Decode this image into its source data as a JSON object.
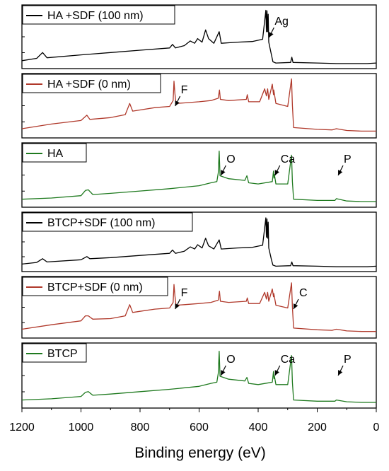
{
  "colors": {
    "black": "#000000",
    "red": "#b0392b",
    "green": "#1f7a1f"
  },
  "chart_data": {
    "type": "line",
    "xlabel": "Binding energy (eV)",
    "xlim": [
      1200,
      0
    ],
    "x_reversed": true,
    "x_ticks": [
      1200,
      1000,
      800,
      600,
      400,
      200,
      0
    ],
    "x_tick_labels": [
      "1200",
      "1000",
      "800",
      "600",
      "400",
      "200",
      "0"
    ],
    "stacked_panels": true,
    "series": [
      {
        "name": "HA +SDF (100 nm)",
        "color": "black",
        "points": [
          [
            1200,
            0.1
          ],
          [
            1150,
            0.14
          ],
          [
            1130,
            0.24
          ],
          [
            1115,
            0.15
          ],
          [
            1000,
            0.2
          ],
          [
            900,
            0.24
          ],
          [
            800,
            0.28
          ],
          [
            700,
            0.32
          ],
          [
            690,
            0.38
          ],
          [
            680,
            0.32
          ],
          [
            650,
            0.36
          ],
          [
            630,
            0.44
          ],
          [
            615,
            0.4
          ],
          [
            605,
            0.48
          ],
          [
            590,
            0.42
          ],
          [
            578,
            0.63
          ],
          [
            568,
            0.48
          ],
          [
            550,
            0.4
          ],
          [
            532,
            0.6
          ],
          [
            525,
            0.4
          ],
          [
            470,
            0.42
          ],
          [
            420,
            0.43
          ],
          [
            385,
            0.47
          ],
          [
            374,
            0.97
          ],
          [
            372,
            0.6
          ],
          [
            370,
            0.96
          ],
          [
            368,
            0.6
          ],
          [
            366,
            0.9
          ],
          [
            364,
            0.42
          ],
          [
            355,
            0.2
          ],
          [
            350,
            0.08
          ],
          [
            340,
            0.06
          ],
          [
            290,
            0.07
          ],
          [
            286,
            0.16
          ],
          [
            282,
            0.07
          ],
          [
            200,
            0.06
          ],
          [
            135,
            0.05
          ],
          [
            100,
            0.05
          ],
          [
            30,
            0.05
          ],
          [
            0,
            0.06
          ]
        ],
        "peak_labels": [
          {
            "text": "Ag",
            "energy": 368
          }
        ]
      },
      {
        "name": "HA +SDF (0 nm)",
        "color": "red",
        "points": [
          [
            1200,
            0.12
          ],
          [
            1100,
            0.2
          ],
          [
            1000,
            0.26
          ],
          [
            980,
            0.35
          ],
          [
            970,
            0.28
          ],
          [
            900,
            0.31
          ],
          [
            850,
            0.36
          ],
          [
            835,
            0.55
          ],
          [
            825,
            0.42
          ],
          [
            800,
            0.44
          ],
          [
            750,
            0.48
          ],
          [
            700,
            0.5
          ],
          [
            688,
            0.6
          ],
          [
            685,
            0.93
          ],
          [
            682,
            0.72
          ],
          [
            678,
            0.55
          ],
          [
            650,
            0.56
          ],
          [
            600,
            0.58
          ],
          [
            560,
            0.6
          ],
          [
            535,
            0.64
          ],
          [
            531,
            0.78
          ],
          [
            528,
            0.62
          ],
          [
            500,
            0.6
          ],
          [
            440,
            0.62
          ],
          [
            437,
            0.7
          ],
          [
            432,
            0.58
          ],
          [
            395,
            0.58
          ],
          [
            378,
            0.8
          ],
          [
            372,
            0.68
          ],
          [
            368,
            0.8
          ],
          [
            364,
            0.62
          ],
          [
            352,
            0.88
          ],
          [
            348,
            0.7
          ],
          [
            347,
            0.78
          ],
          [
            340,
            0.55
          ],
          [
            300,
            0.5
          ],
          [
            287,
            0.97
          ],
          [
            284,
            0.52
          ],
          [
            280,
            0.14
          ],
          [
            200,
            0.11
          ],
          [
            150,
            0.1
          ],
          [
            135,
            0.12
          ],
          [
            100,
            0.09
          ],
          [
            50,
            0.08
          ],
          [
            0,
            0.08
          ]
        ],
        "peak_labels": [
          {
            "text": "F",
            "energy": 686
          }
        ]
      },
      {
        "name": "HA",
        "color": "green",
        "points": [
          [
            1200,
            0.1
          ],
          [
            1100,
            0.12
          ],
          [
            1000,
            0.16
          ],
          [
            985,
            0.25
          ],
          [
            975,
            0.26
          ],
          [
            960,
            0.18
          ],
          [
            900,
            0.2
          ],
          [
            800,
            0.24
          ],
          [
            700,
            0.28
          ],
          [
            600,
            0.33
          ],
          [
            560,
            0.38
          ],
          [
            540,
            0.4
          ],
          [
            535,
            0.55
          ],
          [
            532,
            0.92
          ],
          [
            529,
            0.5
          ],
          [
            500,
            0.45
          ],
          [
            445,
            0.42
          ],
          [
            438,
            0.5
          ],
          [
            432,
            0.38
          ],
          [
            400,
            0.36
          ],
          [
            352,
            0.4
          ],
          [
            348,
            0.58
          ],
          [
            346,
            0.46
          ],
          [
            345,
            0.52
          ],
          [
            340,
            0.36
          ],
          [
            300,
            0.36
          ],
          [
            287,
            0.85
          ],
          [
            284,
            0.4
          ],
          [
            280,
            0.1
          ],
          [
            200,
            0.08
          ],
          [
            140,
            0.08
          ],
          [
            135,
            0.11
          ],
          [
            100,
            0.07
          ],
          [
            50,
            0.06
          ],
          [
            0,
            0.06
          ]
        ],
        "peak_labels": [
          {
            "text": "O",
            "energy": 531
          },
          {
            "text": "Ca",
            "energy": 348
          },
          {
            "text": "P",
            "energy": 134
          }
        ]
      },
      {
        "name": "BTCP+SDF (100 nm)",
        "color": "black",
        "points": [
          [
            1200,
            0.1
          ],
          [
            1150,
            0.13
          ],
          [
            1130,
            0.2
          ],
          [
            1115,
            0.14
          ],
          [
            1000,
            0.18
          ],
          [
            980,
            0.24
          ],
          [
            970,
            0.2
          ],
          [
            900,
            0.22
          ],
          [
            800,
            0.26
          ],
          [
            700,
            0.3
          ],
          [
            690,
            0.36
          ],
          [
            680,
            0.3
          ],
          [
            650,
            0.34
          ],
          [
            630,
            0.42
          ],
          [
            615,
            0.38
          ],
          [
            605,
            0.46
          ],
          [
            590,
            0.4
          ],
          [
            578,
            0.58
          ],
          [
            568,
            0.44
          ],
          [
            550,
            0.38
          ],
          [
            532,
            0.55
          ],
          [
            525,
            0.38
          ],
          [
            470,
            0.4
          ],
          [
            420,
            0.41
          ],
          [
            385,
            0.45
          ],
          [
            374,
            0.96
          ],
          [
            372,
            0.6
          ],
          [
            370,
            0.94
          ],
          [
            368,
            0.58
          ],
          [
            366,
            0.88
          ],
          [
            364,
            0.4
          ],
          [
            355,
            0.18
          ],
          [
            350,
            0.08
          ],
          [
            340,
            0.06
          ],
          [
            290,
            0.07
          ],
          [
            286,
            0.14
          ],
          [
            282,
            0.07
          ],
          [
            200,
            0.06
          ],
          [
            135,
            0.05
          ],
          [
            100,
            0.05
          ],
          [
            30,
            0.05
          ],
          [
            0,
            0.06
          ]
        ]
      },
      {
        "name": "BTCP+SDF (0 nm)",
        "color": "red",
        "points": [
          [
            1200,
            0.12
          ],
          [
            1100,
            0.2
          ],
          [
            1000,
            0.27
          ],
          [
            985,
            0.36
          ],
          [
            975,
            0.36
          ],
          [
            960,
            0.3
          ],
          [
            900,
            0.31
          ],
          [
            850,
            0.36
          ],
          [
            835,
            0.56
          ],
          [
            825,
            0.42
          ],
          [
            800,
            0.44
          ],
          [
            750,
            0.48
          ],
          [
            700,
            0.5
          ],
          [
            688,
            0.6
          ],
          [
            685,
            0.92
          ],
          [
            682,
            0.72
          ],
          [
            678,
            0.55
          ],
          [
            650,
            0.56
          ],
          [
            600,
            0.58
          ],
          [
            560,
            0.6
          ],
          [
            535,
            0.64
          ],
          [
            531,
            0.8
          ],
          [
            528,
            0.62
          ],
          [
            500,
            0.6
          ],
          [
            440,
            0.62
          ],
          [
            437,
            0.68
          ],
          [
            432,
            0.58
          ],
          [
            395,
            0.58
          ],
          [
            378,
            0.78
          ],
          [
            372,
            0.66
          ],
          [
            368,
            0.78
          ],
          [
            364,
            0.62
          ],
          [
            352,
            0.84
          ],
          [
            348,
            0.7
          ],
          [
            347,
            0.76
          ],
          [
            340,
            0.55
          ],
          [
            300,
            0.5
          ],
          [
            287,
            0.95
          ],
          [
            284,
            0.52
          ],
          [
            280,
            0.14
          ],
          [
            200,
            0.11
          ],
          [
            150,
            0.1
          ],
          [
            135,
            0.12
          ],
          [
            100,
            0.09
          ],
          [
            50,
            0.08
          ],
          [
            0,
            0.08
          ]
        ],
        "peak_labels": [
          {
            "text": "F",
            "energy": 686
          },
          {
            "text": "C",
            "energy": 285
          }
        ]
      },
      {
        "name": "BTCP",
        "color": "green",
        "points": [
          [
            1200,
            0.1
          ],
          [
            1100,
            0.12
          ],
          [
            1000,
            0.16
          ],
          [
            985,
            0.23
          ],
          [
            975,
            0.24
          ],
          [
            960,
            0.18
          ],
          [
            900,
            0.2
          ],
          [
            800,
            0.24
          ],
          [
            700,
            0.28
          ],
          [
            600,
            0.33
          ],
          [
            560,
            0.38
          ],
          [
            540,
            0.4
          ],
          [
            535,
            0.55
          ],
          [
            532,
            0.92
          ],
          [
            529,
            0.5
          ],
          [
            500,
            0.45
          ],
          [
            445,
            0.42
          ],
          [
            438,
            0.48
          ],
          [
            432,
            0.38
          ],
          [
            400,
            0.36
          ],
          [
            352,
            0.4
          ],
          [
            348,
            0.58
          ],
          [
            346,
            0.46
          ],
          [
            345,
            0.5
          ],
          [
            340,
            0.36
          ],
          [
            300,
            0.36
          ],
          [
            287,
            0.85
          ],
          [
            284,
            0.4
          ],
          [
            280,
            0.1
          ],
          [
            200,
            0.08
          ],
          [
            140,
            0.08
          ],
          [
            135,
            0.1
          ],
          [
            100,
            0.07
          ],
          [
            50,
            0.06
          ],
          [
            0,
            0.06
          ]
        ],
        "peak_labels": [
          {
            "text": "O",
            "energy": 531
          },
          {
            "text": "Ca",
            "energy": 348
          },
          {
            "text": "P",
            "energy": 134
          }
        ]
      }
    ]
  }
}
